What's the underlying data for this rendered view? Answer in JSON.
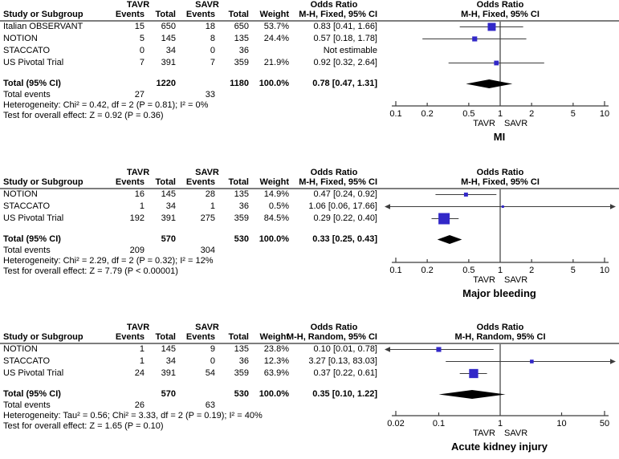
{
  "colors": {
    "marker": "#3228c8",
    "diamond": "#000000",
    "ci_line": "#3c3c3c",
    "axis": "#3c3c3c",
    "header_rule": "#7d7d7d",
    "text": "#000000",
    "background": "#ffffff"
  },
  "header_labels": {
    "study": "Study or Subgroup",
    "group1": "TAVR",
    "group2": "SAVR",
    "events": "Events",
    "total": "Total",
    "weight": "Weight",
    "odds_ratio": "Odds Ratio"
  },
  "chart_data": [
    {
      "type": "forest",
      "outcome": "MI",
      "effect_measure": "Odds Ratio",
      "method": "M-H, Fixed, 95% CI",
      "favours": [
        "TAVR",
        "SAVR"
      ],
      "axis": {
        "scale": "log",
        "range": [
          0.1,
          10
        ],
        "tick_labels": [
          "0.1",
          "0.2",
          "0.5",
          "1",
          "2",
          "5",
          "10"
        ]
      },
      "studies": [
        {
          "study": "Italian OBSERVANT",
          "tavr_events": "15",
          "tavr_total": "650",
          "savr_events": "18",
          "savr_total": "650",
          "weight": "53.7%",
          "weight_pct": 53.7,
          "or": 0.83,
          "ci_low": 0.41,
          "ci_high": 1.66,
          "or_text": "0.83 [0.41, 1.66]",
          "estimable": true
        },
        {
          "study": "NOTION",
          "tavr_events": "5",
          "tavr_total": "145",
          "savr_events": "8",
          "savr_total": "135",
          "weight": "24.4%",
          "weight_pct": 24.4,
          "or": 0.57,
          "ci_low": 0.18,
          "ci_high": 1.78,
          "or_text": "0.57 [0.18, 1.78]",
          "estimable": true
        },
        {
          "study": "STACCATO",
          "tavr_events": "0",
          "tavr_total": "34",
          "savr_events": "0",
          "savr_total": "36",
          "weight": "",
          "weight_pct": 0,
          "or_text": "Not estimable",
          "estimable": false
        },
        {
          "study": "US Pivotal Trial",
          "tavr_events": "7",
          "tavr_total": "391",
          "savr_events": "7",
          "savr_total": "359",
          "weight": "21.9%",
          "weight_pct": 21.9,
          "or": 0.92,
          "ci_low": 0.32,
          "ci_high": 2.64,
          "or_text": "0.92 [0.32, 2.64]",
          "estimable": true
        }
      ],
      "total": {
        "label": "Total (95% CI)",
        "tavr_total": "1220",
        "savr_total": "1180",
        "weight": "100.0%",
        "or": 0.78,
        "ci_low": 0.47,
        "ci_high": 1.31,
        "or_text": "0.78 [0.47, 1.31]"
      },
      "total_events": {
        "label": "Total events",
        "tavr": "27",
        "savr": "33"
      },
      "heterogeneity": "Heterogeneity: Chi² = 0.42, df = 2 (P = 0.81); I² = 0%",
      "overall_effect": "Test for overall effect: Z = 0.92 (P = 0.36)"
    },
    {
      "type": "forest",
      "outcome": "Major bleeding",
      "effect_measure": "Odds Ratio",
      "method": "M-H, Fixed, 95% CI",
      "favours": [
        "TAVR",
        "SAVR"
      ],
      "axis": {
        "scale": "log",
        "range": [
          0.1,
          10
        ],
        "tick_labels": [
          "0.1",
          "0.2",
          "0.5",
          "1",
          "2",
          "5",
          "10"
        ]
      },
      "studies": [
        {
          "study": "NOTION",
          "tavr_events": "16",
          "tavr_total": "145",
          "savr_events": "28",
          "savr_total": "135",
          "weight": "14.9%",
          "weight_pct": 14.9,
          "or": 0.47,
          "ci_low": 0.24,
          "ci_high": 0.92,
          "or_text": "0.47 [0.24, 0.92]",
          "estimable": true
        },
        {
          "study": "STACCATO",
          "tavr_events": "1",
          "tavr_total": "34",
          "savr_events": "1",
          "savr_total": "36",
          "weight": "0.5%",
          "weight_pct": 0.5,
          "or": 1.06,
          "ci_low": 0.06,
          "ci_high": 17.66,
          "or_text": "1.06 [0.06, 17.66]",
          "estimable": true
        },
        {
          "study": "US Pivotal Trial",
          "tavr_events": "192",
          "tavr_total": "391",
          "savr_events": "275",
          "savr_total": "359",
          "weight": "84.5%",
          "weight_pct": 84.5,
          "or": 0.29,
          "ci_low": 0.22,
          "ci_high": 0.4,
          "or_text": "0.29 [0.22, 0.40]",
          "estimable": true
        }
      ],
      "total": {
        "label": "Total (95% CI)",
        "tavr_total": "570",
        "savr_total": "530",
        "weight": "100.0%",
        "or": 0.33,
        "ci_low": 0.25,
        "ci_high": 0.43,
        "or_text": "0.33 [0.25, 0.43]"
      },
      "total_events": {
        "label": "Total events",
        "tavr": "209",
        "savr": "304"
      },
      "heterogeneity": "Heterogeneity: Chi² = 2.29, df = 2 (P = 0.32); I² = 12%",
      "overall_effect": "Test for overall effect: Z = 7.79 (P < 0.00001)"
    },
    {
      "type": "forest",
      "outcome": "Acute kidney injury",
      "effect_measure": "Odds Ratio",
      "method": "M-H, Random, 95% CI",
      "favours": [
        "TAVR",
        "SAVR"
      ],
      "axis": {
        "scale": "log",
        "range": [
          0.02,
          50
        ],
        "tick_labels": [
          "0.02",
          "0.1",
          "1",
          "10",
          "50"
        ]
      },
      "studies": [
        {
          "study": "NOTION",
          "tavr_events": "1",
          "tavr_total": "145",
          "savr_events": "9",
          "savr_total": "135",
          "weight": "23.8%",
          "weight_pct": 23.8,
          "or": 0.1,
          "ci_low": 0.01,
          "ci_high": 0.78,
          "or_text": "0.10 [0.01, 0.78]",
          "estimable": true
        },
        {
          "study": "STACCATO",
          "tavr_events": "1",
          "tavr_total": "34",
          "savr_events": "0",
          "savr_total": "36",
          "weight": "12.3%",
          "weight_pct": 12.3,
          "or": 3.27,
          "ci_low": 0.13,
          "ci_high": 83.03,
          "or_text": "3.27 [0.13, 83.03]",
          "estimable": true
        },
        {
          "study": "US Pivotal Trial",
          "tavr_events": "24",
          "tavr_total": "391",
          "savr_events": "54",
          "savr_total": "359",
          "weight": "63.9%",
          "weight_pct": 63.9,
          "or": 0.37,
          "ci_low": 0.22,
          "ci_high": 0.61,
          "or_text": "0.37 [0.22, 0.61]",
          "estimable": true
        }
      ],
      "total": {
        "label": "Total (95% CI)",
        "tavr_total": "570",
        "savr_total": "530",
        "weight": "100.0%",
        "or": 0.35,
        "ci_low": 0.1,
        "ci_high": 1.22,
        "or_text": "0.35 [0.10, 1.22]"
      },
      "total_events": {
        "label": "Total events",
        "tavr": "26",
        "savr": "63"
      },
      "heterogeneity": "Heterogeneity: Tau² = 0.56; Chi² = 3.33, df = 2 (P = 0.19); I² = 40%",
      "overall_effect": "Test for overall effect: Z = 1.65 (P = 0.10)"
    }
  ]
}
